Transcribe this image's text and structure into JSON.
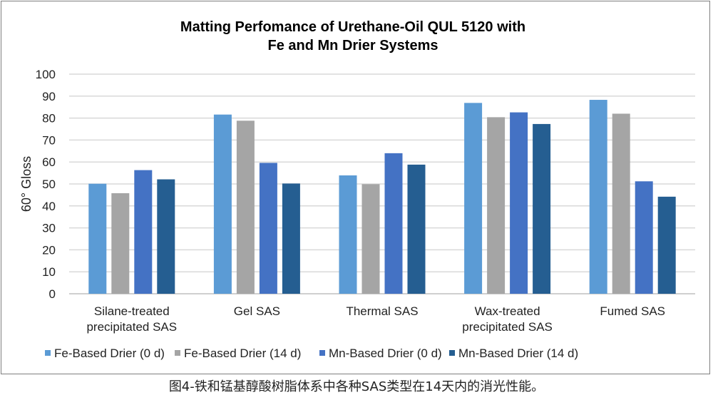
{
  "chart_data": {
    "type": "bar",
    "title": [
      "Matting Perfomance of Urethane-Oil QUL 5120 with",
      "Fe and Mn Drier Systems"
    ],
    "ylabel": "60° Gloss",
    "xlabel": "",
    "ylim": [
      0,
      100
    ],
    "yticks": [
      0,
      10,
      20,
      30,
      40,
      50,
      60,
      70,
      80,
      90,
      100
    ],
    "grid": true,
    "legend_position": "bottom",
    "categories": [
      [
        "Silane-treated",
        "precipitated SAS"
      ],
      [
        "Gel SAS"
      ],
      [
        "Thermal SAS"
      ],
      [
        "Wax-treated",
        "precipitated SAS"
      ],
      [
        "Fumed SAS"
      ]
    ],
    "series": [
      {
        "name": "Fe-Based Drier (0 d)",
        "color": "#5b9bd5",
        "values": [
          50.1,
          81.6,
          53.9,
          86.9,
          88.3
        ]
      },
      {
        "name": "Fe-Based Drier (14 d)",
        "color": "#a5a5a5",
        "values": [
          45.8,
          78.8,
          49.9,
          80.4,
          82.0
        ]
      },
      {
        "name": "Mn-Based Drier (0 d)",
        "color": "#4472c4",
        "values": [
          56.3,
          59.6,
          64.0,
          82.6,
          51.2
        ]
      },
      {
        "name": "Mn-Based Drier (14 d)",
        "color": "#255e91",
        "values": [
          52.1,
          50.2,
          58.8,
          77.3,
          44.2
        ]
      }
    ]
  },
  "caption": "图4-铁和锰基醇酸树脂体系中各种SAS类型在14天内的消光性能。"
}
